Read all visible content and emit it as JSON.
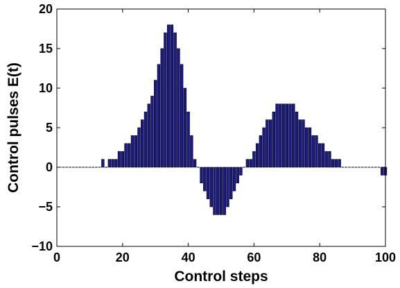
{
  "chart_data": {
    "type": "bar",
    "title": "",
    "xlabel": "Control steps",
    "ylabel": "Control pulses E(t)",
    "xlim": [
      0,
      100
    ],
    "ylim": [
      -10,
      20
    ],
    "x_ticks": [
      0,
      20,
      40,
      60,
      80,
      100
    ],
    "y_ticks": [
      -10,
      -5,
      0,
      5,
      10,
      15,
      20
    ],
    "grid": false,
    "legend": "none",
    "bar_color": "#1a1a8c",
    "bar_edge_color": "#000000",
    "x": [
      1,
      2,
      3,
      4,
      5,
      6,
      7,
      8,
      9,
      10,
      11,
      12,
      13,
      14,
      15,
      16,
      17,
      18,
      19,
      20,
      21,
      22,
      23,
      24,
      25,
      26,
      27,
      28,
      29,
      30,
      31,
      32,
      33,
      34,
      35,
      36,
      37,
      38,
      39,
      40,
      41,
      42,
      43,
      44,
      45,
      46,
      47,
      48,
      49,
      50,
      51,
      52,
      53,
      54,
      55,
      56,
      57,
      58,
      59,
      60,
      61,
      62,
      63,
      64,
      65,
      66,
      67,
      68,
      69,
      70,
      71,
      72,
      73,
      74,
      75,
      76,
      77,
      78,
      79,
      80,
      81,
      82,
      83,
      84,
      85,
      86,
      87,
      88,
      89,
      90,
      91,
      92,
      93,
      94,
      95,
      96,
      97,
      98,
      99,
      100
    ],
    "values": [
      0,
      0,
      0,
      0,
      0,
      0,
      0,
      0,
      0,
      0,
      0,
      0,
      0,
      1,
      0,
      1,
      1,
      1,
      2,
      2,
      3,
      3,
      4,
      4,
      5,
      6,
      7,
      8,
      9,
      11,
      13,
      15,
      17,
      18,
      18,
      17,
      15,
      13,
      10,
      7,
      4,
      1,
      0,
      -2,
      -3,
      -4,
      -5,
      -6,
      -6,
      -6,
      -6,
      -5,
      -4,
      -3,
      -2,
      -1,
      0,
      1,
      1,
      2,
      3,
      4,
      5,
      6,
      6,
      7,
      8,
      8,
      8,
      8,
      8,
      8,
      7,
      6,
      6,
      5,
      5,
      4,
      4,
      3,
      3,
      2,
      2,
      1,
      1,
      1,
      0,
      0,
      0,
      0,
      0,
      0,
      0,
      0,
      0,
      0,
      0,
      0,
      -1,
      -1
    ]
  }
}
